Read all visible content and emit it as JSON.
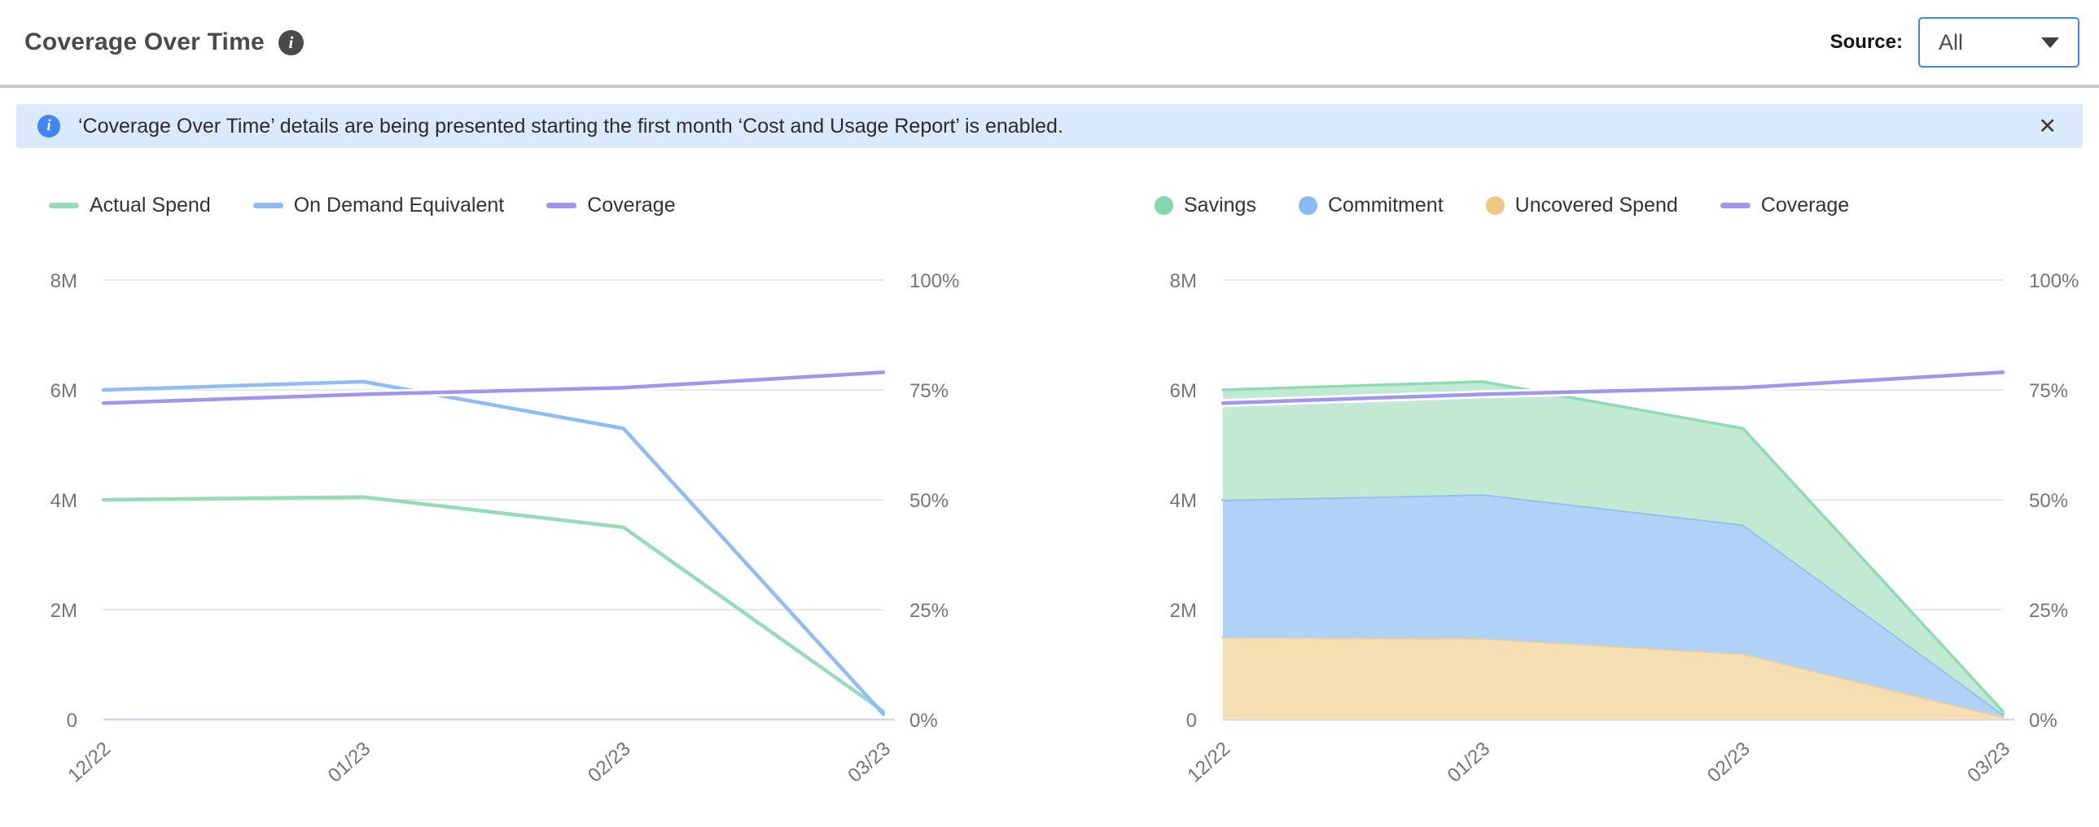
{
  "header": {
    "title": "Coverage Over Time",
    "info_icon": "i",
    "source_label": "Source:",
    "source_value": "All"
  },
  "banner": {
    "icon": "i",
    "text": "‘Coverage Over Time’ details are being presented starting the first month ‘Cost and Usage Report’ is enabled.",
    "close_icon": "✕"
  },
  "colors": {
    "accent_blue": "#4285f4",
    "banner_bg": "#dbe9fc",
    "gridline": "#e8e8e8",
    "axis_line": "#ccd6eb",
    "tick_text": "#757575",
    "coverage_purple": "#a295ee"
  },
  "chart_data": [
    {
      "type": "line",
      "name": "spend-vs-on-demand",
      "x": [
        "12/22",
        "01/23",
        "02/23",
        "03/23"
      ],
      "y_left": {
        "ticks": [
          "0",
          "2M",
          "4M",
          "6M",
          "8M"
        ],
        "min": 0,
        "max": 8,
        "unit": "M"
      },
      "y_right": {
        "ticks": [
          "0%",
          "25%",
          "50%",
          "75%",
          "100%"
        ],
        "min": 0,
        "max": 100,
        "unit": "%"
      },
      "grid": true,
      "legend_position": "top-left",
      "series": [
        {
          "name": "Actual Spend",
          "render": "line",
          "axis": "left",
          "swatch": "line",
          "color": "#96dcb8",
          "values": [
            4.0,
            4.05,
            3.5,
            0.15
          ]
        },
        {
          "name": "On Demand Equivalent",
          "render": "line",
          "axis": "left",
          "swatch": "line",
          "color": "#8fbcf2",
          "values": [
            6.0,
            6.15,
            5.3,
            0.1
          ]
        },
        {
          "name": "Coverage",
          "render": "line",
          "axis": "right",
          "swatch": "line",
          "color": "#a295ee",
          "halo": true,
          "values": [
            72,
            74,
            75.5,
            79
          ]
        }
      ]
    },
    {
      "type": "area-stacked",
      "name": "savings-commitment-uncovered",
      "x": [
        "12/22",
        "01/23",
        "02/23",
        "03/23"
      ],
      "y_left": {
        "ticks": [
          "0",
          "2M",
          "4M",
          "6M",
          "8M"
        ],
        "min": 0,
        "max": 8,
        "unit": "M"
      },
      "y_right": {
        "ticks": [
          "0%",
          "25%",
          "50%",
          "75%",
          "100%"
        ],
        "min": 0,
        "max": 100,
        "unit": "%"
      },
      "grid": true,
      "legend_position": "top-left",
      "stack_note": "areas stack bottom-up: Uncovered Spend, Commitment, Savings",
      "series": [
        {
          "name": "Savings",
          "render": "area",
          "axis": "left",
          "swatch": "circle",
          "color": "#85d6ab",
          "fill": "#c2e9d4",
          "edge": "#8edcb4",
          "values": [
            2.0,
            2.05,
            1.75,
            0.05
          ]
        },
        {
          "name": "Commitment",
          "render": "area",
          "axis": "left",
          "swatch": "circle",
          "color": "#88baf2",
          "fill": "#b0d2f7",
          "edge": "#90bef2",
          "values": [
            2.5,
            2.62,
            2.35,
            0.05
          ]
        },
        {
          "name": "Uncovered Spend",
          "render": "area",
          "axis": "left",
          "swatch": "circle",
          "color": "#f0c884",
          "fill": "#f5dfb2",
          "edge": "#eecd92",
          "values": [
            1.5,
            1.48,
            1.2,
            0.05
          ]
        },
        {
          "name": "Coverage",
          "render": "line",
          "axis": "right",
          "swatch": "line",
          "color": "#a295ee",
          "halo": true,
          "values": [
            72,
            74,
            75.5,
            79
          ]
        }
      ]
    }
  ]
}
